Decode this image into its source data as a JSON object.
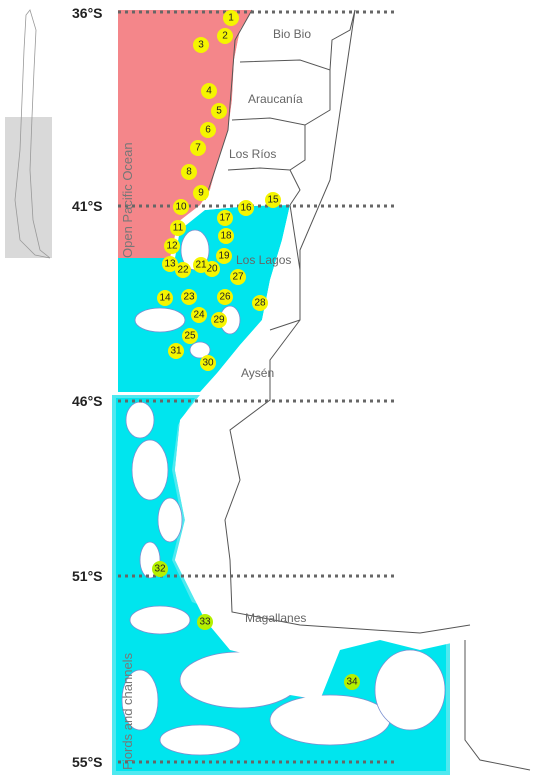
{
  "latitudes": [
    "36°S",
    "41°S",
    "46°S",
    "51°S",
    "55°S"
  ],
  "regions": [
    "Bio Bio",
    "Araucanía",
    "Los Ríos",
    "Los Lagos",
    "Aysén",
    "Magallanes"
  ],
  "zones": [
    "Open Pacific Ocean",
    "Fjords and channels"
  ],
  "stations": [
    1,
    2,
    3,
    4,
    5,
    6,
    7,
    8,
    9,
    10,
    11,
    12,
    13,
    14,
    15,
    16,
    17,
    18,
    19,
    20,
    21,
    22,
    23,
    24,
    25,
    26,
    27,
    28,
    29,
    30,
    31,
    32,
    33,
    34
  ]
}
